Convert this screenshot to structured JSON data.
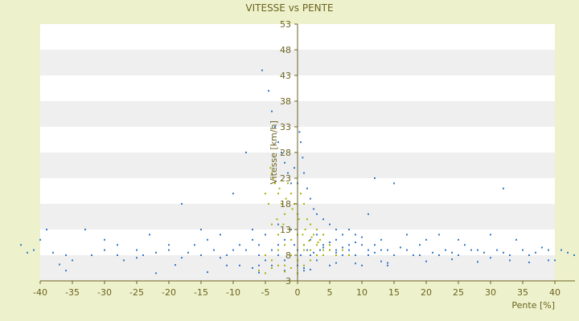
{
  "chart_data": {
    "type": "scatter",
    "title": "VITESSE vs PENTE",
    "xlabel": "Pente [%]",
    "ylabel": "Vitesse [km/h]",
    "xlim": [
      -40,
      40
    ],
    "ylim": [
      3,
      53
    ],
    "x_ticks": [
      -40,
      -35,
      -30,
      -25,
      -20,
      -15,
      -10,
      -5,
      0,
      5,
      10,
      15,
      20,
      25,
      30,
      35,
      40
    ],
    "y_ticks": [
      3,
      8,
      13,
      18,
      23,
      28,
      33,
      38,
      43,
      48,
      53
    ],
    "grid": "horizontal bands",
    "colors": {
      "background": "#eef2cc",
      "band_light": "#ffffff",
      "band_dark": "#efefef",
      "axis": "#6b6220",
      "series_1": "#2e78c8",
      "series_2": "#a8b000"
    },
    "series": [
      {
        "color": "#2e78c8",
        "points": [
          [
            -38,
            8.5
          ],
          [
            -35,
            7
          ],
          [
            -32,
            8
          ],
          [
            -28,
            8
          ],
          [
            -25,
            7.5
          ],
          [
            -22,
            8.5
          ],
          [
            -20,
            9
          ],
          [
            -18,
            7.5
          ],
          [
            -15,
            8
          ],
          [
            -13,
            9
          ],
          [
            -11,
            8
          ],
          [
            -9,
            10
          ],
          [
            -8,
            9
          ],
          [
            -7,
            11
          ],
          [
            -6,
            8
          ],
          [
            -5,
            12
          ],
          [
            -4,
            9
          ],
          [
            -3,
            10
          ],
          [
            -2,
            11
          ],
          [
            -1,
            13
          ],
          [
            -0.5,
            10
          ],
          [
            0,
            9
          ],
          [
            0.5,
            8
          ],
          [
            1,
            10
          ],
          [
            1.5,
            9
          ],
          [
            2,
            11
          ],
          [
            2.5,
            8.5
          ],
          [
            3,
            12
          ],
          [
            3.5,
            9
          ],
          [
            4,
            10
          ],
          [
            5,
            9
          ],
          [
            6,
            8.5
          ],
          [
            7,
            9.5
          ],
          [
            8,
            9
          ],
          [
            9,
            8
          ],
          [
            10,
            10
          ],
          [
            11,
            9
          ],
          [
            12,
            8.5
          ],
          [
            13,
            9
          ],
          [
            15,
            8
          ],
          [
            17,
            9
          ],
          [
            19,
            8
          ],
          [
            21,
            8.5
          ],
          [
            23,
            9
          ],
          [
            25,
            8
          ],
          [
            27,
            9
          ],
          [
            29,
            8.5
          ],
          [
            31,
            9
          ],
          [
            33,
            8
          ],
          [
            35,
            9
          ],
          [
            37,
            8.5
          ],
          [
            39,
            9
          ],
          [
            -36,
            8
          ],
          [
            -30,
            9
          ],
          [
            -27,
            7
          ],
          [
            -24,
            8
          ],
          [
            -17,
            8.5
          ],
          [
            -12,
            7.5
          ],
          [
            -10,
            9
          ],
          [
            -6,
            10
          ],
          [
            -3,
            8
          ],
          [
            2,
            8
          ],
          [
            4,
            9.5
          ],
          [
            6,
            9
          ],
          [
            8,
            10
          ],
          [
            14,
            9
          ],
          [
            18,
            8
          ],
          [
            24,
            8.5
          ],
          [
            28,
            9
          ],
          [
            32,
            8.5
          ],
          [
            36,
            8
          ],
          [
            -5.5,
            44
          ],
          [
            -4.5,
            40
          ],
          [
            -4,
            36
          ],
          [
            -3.5,
            33
          ],
          [
            -3,
            30
          ],
          [
            -2.5,
            28
          ],
          [
            -2,
            26
          ],
          [
            -1.5,
            24
          ],
          [
            -1,
            22
          ],
          [
            -0.5,
            25
          ],
          [
            0,
            22
          ],
          [
            0.3,
            32
          ],
          [
            0.5,
            30
          ],
          [
            0.8,
            27
          ],
          [
            1,
            24
          ],
          [
            1.5,
            21
          ],
          [
            2,
            19
          ],
          [
            2.5,
            17
          ],
          [
            3,
            16
          ],
          [
            4,
            15
          ],
          [
            5,
            14
          ],
          [
            6,
            13
          ],
          [
            7,
            12
          ],
          [
            8,
            13
          ],
          [
            9,
            12
          ],
          [
            11,
            16
          ],
          [
            12,
            23
          ],
          [
            15,
            22
          ],
          [
            17,
            12
          ],
          [
            20,
            11
          ],
          [
            22,
            12
          ],
          [
            25,
            11
          ],
          [
            30,
            12
          ],
          [
            32,
            21
          ],
          [
            -8,
            28
          ],
          [
            -10,
            20
          ],
          [
            -15,
            13
          ],
          [
            -18,
            18
          ],
          [
            -23,
            12
          ],
          [
            -30,
            11
          ],
          [
            -33,
            13
          ],
          [
            -39,
            13
          ],
          [
            -40,
            11
          ],
          [
            -41,
            9
          ],
          [
            -42,
            8.5
          ],
          [
            -43,
            10
          ],
          [
            41,
            9
          ],
          [
            42,
            8.5
          ],
          [
            43,
            8
          ],
          [
            -7,
            13
          ],
          [
            -6,
            6
          ],
          [
            -5,
            7
          ],
          [
            -3,
            14
          ],
          [
            0,
            6
          ],
          [
            1,
            5
          ],
          [
            3,
            7
          ],
          [
            5,
            10.5
          ],
          [
            7,
            8
          ],
          [
            9,
            10.5
          ],
          [
            10,
            11.5
          ],
          [
            12,
            10
          ],
          [
            13,
            11
          ],
          [
            16,
            9.5
          ],
          [
            19,
            10
          ],
          [
            26,
            10
          ],
          [
            34,
            11
          ],
          [
            38,
            9.5
          ],
          [
            40,
            7
          ],
          [
            -28,
            10
          ],
          [
            -25,
            9
          ],
          [
            -20,
            10
          ],
          [
            -16,
            10
          ],
          [
            -14,
            11
          ],
          [
            -12,
            12
          ],
          [
            -9,
            6
          ],
          [
            -4,
            6
          ],
          [
            -2,
            7
          ],
          [
            4,
            12
          ],
          [
            6,
            11
          ],
          [
            11,
            8
          ],
          [
            14,
            6
          ],
          [
            22,
            8
          ],
          [
            30,
            7.5
          ],
          [
            -36,
            5
          ],
          [
            -22,
            4.5
          ],
          [
            -14,
            4.7
          ],
          [
            -6,
            4.6
          ],
          [
            -2,
            5
          ],
          [
            2,
            5.2
          ],
          [
            6,
            6.5
          ],
          [
            10,
            6
          ],
          [
            14,
            6.5
          ],
          [
            20,
            6.8
          ],
          [
            28,
            6.7
          ],
          [
            36,
            6.6
          ],
          [
            -37,
            6.2
          ],
          [
            -19,
            6.1
          ],
          [
            -11,
            6
          ],
          [
            -7,
            5.5
          ],
          [
            1,
            5.5
          ],
          [
            5,
            6
          ],
          [
            9,
            6.4
          ],
          [
            13,
            6.8
          ],
          [
            24,
            7.2
          ],
          [
            33,
            7
          ],
          [
            39,
            7
          ]
        ]
      },
      {
        "color": "#a8b000",
        "points": [
          [
            -5,
            20
          ],
          [
            -4.5,
            18
          ],
          [
            -4,
            24
          ],
          [
            -3.5,
            22
          ],
          [
            -3,
            20
          ],
          [
            -2.5,
            18
          ],
          [
            -2,
            16
          ],
          [
            -1.5,
            22
          ],
          [
            -1,
            20
          ],
          [
            -0.5,
            18
          ],
          [
            0,
            16
          ],
          [
            0.5,
            20
          ],
          [
            1,
            18
          ],
          [
            1.5,
            15
          ],
          [
            2,
            14
          ],
          [
            2.5,
            12
          ],
          [
            3,
            13
          ],
          [
            3.5,
            11
          ],
          [
            4,
            12
          ],
          [
            5,
            10
          ],
          [
            -4,
            14
          ],
          [
            -3,
            12
          ],
          [
            -2,
            10
          ],
          [
            -1,
            11
          ],
          [
            0,
            12
          ],
          [
            1,
            10
          ],
          [
            2,
            9
          ],
          [
            3,
            10
          ],
          [
            4,
            9
          ],
          [
            -5,
            8
          ],
          [
            -4,
            7
          ],
          [
            -3,
            9
          ],
          [
            -2,
            6
          ],
          [
            -1,
            8
          ],
          [
            0,
            7
          ],
          [
            1,
            9
          ],
          [
            2,
            7
          ],
          [
            3,
            8
          ],
          [
            4,
            8
          ],
          [
            5,
            9
          ],
          [
            6,
            8
          ],
          [
            7,
            9
          ],
          [
            8,
            8
          ],
          [
            -6,
            5
          ],
          [
            -5,
            4.5
          ],
          [
            -4,
            5.5
          ],
          [
            -3,
            6
          ],
          [
            -2,
            4.8
          ],
          [
            -1,
            5.5
          ],
          [
            0,
            4.5
          ],
          [
            1,
            6
          ],
          [
            -4.2,
            25
          ],
          [
            -3.8,
            23
          ],
          [
            -2.8,
            21
          ],
          [
            -1.8,
            19
          ],
          [
            -0.8,
            17
          ],
          [
            0.2,
            15
          ],
          [
            1.2,
            13
          ],
          [
            2.2,
            11.5
          ],
          [
            3.2,
            10.5
          ],
          [
            -3.2,
            15
          ],
          [
            -2.2,
            14
          ],
          [
            -1.2,
            13
          ],
          [
            0.8,
            12
          ],
          [
            1.8,
            10.8
          ]
        ]
      }
    ]
  }
}
